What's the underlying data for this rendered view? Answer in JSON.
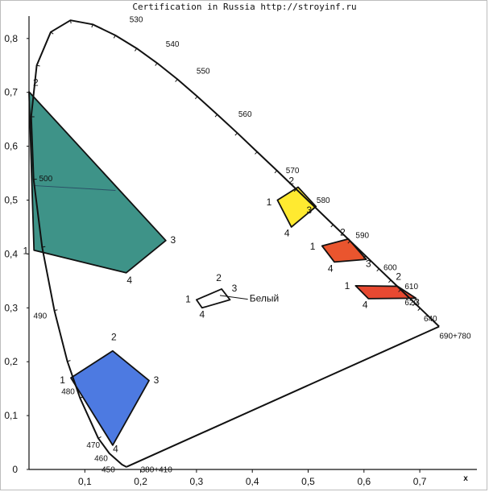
{
  "header": {
    "text": "Certification in Russia http://stroyinf.ru"
  },
  "chart_data": {
    "type": "scatter",
    "title": "",
    "xlabel": "x",
    "ylabel": "",
    "xlim": [
      0,
      0.8
    ],
    "ylim": [
      0,
      0.85
    ],
    "grid": false,
    "x_ticks": [
      {
        "v": 0.1,
        "label": "0,1"
      },
      {
        "v": 0.2,
        "label": "0,2"
      },
      {
        "v": 0.3,
        "label": "0,3"
      },
      {
        "v": 0.4,
        "label": "0,4"
      },
      {
        "v": 0.5,
        "label": "0,5"
      },
      {
        "v": 0.6,
        "label": "0,6"
      },
      {
        "v": 0.7,
        "label": "0,7"
      }
    ],
    "y_ticks": [
      {
        "v": 0.0,
        "label": "0"
      },
      {
        "v": 0.1,
        "label": "0,1"
      },
      {
        "v": 0.2,
        "label": "0,2"
      },
      {
        "v": 0.3,
        "label": "0,3"
      },
      {
        "v": 0.4,
        "label": "0,4"
      },
      {
        "v": 0.5,
        "label": "0,5"
      },
      {
        "v": 0.6,
        "label": "0,6"
      },
      {
        "v": 0.7,
        "label": "0,7"
      },
      {
        "v": 0.8,
        "label": "0,8"
      }
    ],
    "locus": [
      [
        0.175,
        0.005
      ],
      [
        0.1741,
        0.005
      ],
      [
        0.1666,
        0.0089
      ],
      [
        0.144,
        0.0297
      ],
      [
        0.1241,
        0.0578
      ],
      [
        0.0913,
        0.1327
      ],
      [
        0.0687,
        0.2007
      ],
      [
        0.0454,
        0.295
      ],
      [
        0.0235,
        0.4127
      ],
      [
        0.0082,
        0.5384
      ],
      [
        0.0039,
        0.6548
      ],
      [
        0.0139,
        0.7502
      ],
      [
        0.0389,
        0.812
      ],
      [
        0.0743,
        0.8338
      ],
      [
        0.1142,
        0.8262
      ],
      [
        0.1547,
        0.8059
      ],
      [
        0.1929,
        0.7816
      ],
      [
        0.2296,
        0.7543
      ],
      [
        0.2658,
        0.7243
      ],
      [
        0.3016,
        0.6923
      ],
      [
        0.3373,
        0.6589
      ],
      [
        0.3731,
        0.6245
      ],
      [
        0.4087,
        0.5896
      ],
      [
        0.4441,
        0.5547
      ],
      [
        0.4788,
        0.5202
      ],
      [
        0.5125,
        0.4866
      ],
      [
        0.5448,
        0.4544
      ],
      [
        0.5752,
        0.4242
      ],
      [
        0.6029,
        0.3965
      ],
      [
        0.627,
        0.3725
      ],
      [
        0.6482,
        0.3514
      ],
      [
        0.6658,
        0.334
      ],
      [
        0.6801,
        0.3197
      ],
      [
        0.6915,
        0.3083
      ],
      [
        0.7006,
        0.2993
      ],
      [
        0.714,
        0.2859
      ],
      [
        0.7347,
        0.2653
      ]
    ],
    "locus_closing_line": [
      [
        0.7347,
        0.2653
      ],
      [
        0.175,
        0.005
      ]
    ],
    "wavelength_labels": [
      {
        "label": "530",
        "x": 0.18,
        "y": 0.83
      },
      {
        "label": "540",
        "x": 0.245,
        "y": 0.785
      },
      {
        "label": "550",
        "x": 0.3,
        "y": 0.735
      },
      {
        "label": "560",
        "x": 0.375,
        "y": 0.655
      },
      {
        "label": "570",
        "x": 0.46,
        "y": 0.55
      },
      {
        "label": "580",
        "x": 0.515,
        "y": 0.495
      },
      {
        "label": "590",
        "x": 0.585,
        "y": 0.43
      },
      {
        "label": "600",
        "x": 0.635,
        "y": 0.37
      },
      {
        "label": "610",
        "x": 0.673,
        "y": 0.335
      },
      {
        "label": "620",
        "x": 0.673,
        "y": 0.305
      },
      {
        "label": "640",
        "x": 0.707,
        "y": 0.275
      },
      {
        "label": "690+780",
        "x": 0.735,
        "y": 0.243
      },
      {
        "label": "500",
        "x": 0.018,
        "y": 0.535
      },
      {
        "label": "490",
        "x": 0.008,
        "y": 0.28
      },
      {
        "label": "480",
        "x": 0.058,
        "y": 0.14
      },
      {
        "label": "470",
        "x": 0.103,
        "y": 0.04
      },
      {
        "label": "460",
        "x": 0.117,
        "y": 0.016
      },
      {
        "label": "450",
        "x": 0.13,
        "y": -0.005
      },
      {
        "label": "380+410",
        "x": 0.2,
        "y": -0.005
      }
    ],
    "series": [
      {
        "name": "",
        "fill": "#2e8a7e",
        "points": [
          [
            0.009,
            0.407
          ],
          [
            0.0,
            0.701
          ],
          [
            0.245,
            0.425
          ],
          [
            0.174,
            0.365
          ]
        ],
        "vertex_labels": [
          "1",
          "2",
          "3",
          "4"
        ],
        "label_positions": [
          [
            -0.006,
            0.4
          ],
          [
            0.012,
            0.712
          ],
          [
            0.258,
            0.42
          ],
          [
            0.18,
            0.345
          ]
        ]
      },
      {
        "name": "",
        "fill": "#3e6fde",
        "points": [
          [
            0.075,
            0.17
          ],
          [
            0.15,
            0.22
          ],
          [
            0.215,
            0.165
          ],
          [
            0.15,
            0.045
          ]
        ],
        "vertex_labels": [
          "1",
          "2",
          "3",
          "4"
        ],
        "label_positions": [
          [
            0.06,
            0.16
          ],
          [
            0.152,
            0.24
          ],
          [
            0.228,
            0.16
          ],
          [
            0.155,
            0.032
          ]
        ]
      },
      {
        "name": "",
        "fill": "#ffe81e",
        "points": [
          [
            0.445,
            0.5
          ],
          [
            0.482,
            0.524
          ],
          [
            0.514,
            0.488
          ],
          [
            0.47,
            0.45
          ]
        ],
        "vertex_labels": [
          "1",
          "2",
          "3",
          "4"
        ],
        "label_positions": [
          [
            0.43,
            0.49
          ],
          [
            0.47,
            0.53
          ],
          [
            0.502,
            0.475
          ],
          [
            0.462,
            0.433
          ]
        ]
      },
      {
        "name": "",
        "fill": "#e8461c",
        "points": [
          [
            0.525,
            0.415
          ],
          [
            0.572,
            0.428
          ],
          [
            0.604,
            0.39
          ],
          [
            0.547,
            0.385
          ]
        ],
        "vertex_labels": [
          "1",
          "2",
          "3",
          "4"
        ],
        "label_positions": [
          [
            0.508,
            0.408
          ],
          [
            0.562,
            0.434
          ],
          [
            0.608,
            0.376
          ],
          [
            0.54,
            0.367
          ]
        ]
      },
      {
        "name": "",
        "fill": "#e5391f",
        "points": [
          [
            0.585,
            0.341
          ],
          [
            0.66,
            0.34
          ],
          [
            0.693,
            0.318
          ],
          [
            0.608,
            0.317
          ]
        ],
        "vertex_labels": [
          "1",
          "2",
          "3",
          "4"
        ],
        "label_positions": [
          [
            0.57,
            0.335
          ],
          [
            0.662,
            0.352
          ],
          [
            0.695,
            0.304
          ],
          [
            0.602,
            0.3
          ]
        ]
      },
      {
        "name": "Белый",
        "fill": "none",
        "points": [
          [
            0.3,
            0.315
          ],
          [
            0.345,
            0.335
          ],
          [
            0.36,
            0.315
          ],
          [
            0.31,
            0.3
          ]
        ],
        "vertex_labels": [
          "1",
          "2",
          "3",
          "4"
        ],
        "label_positions": [
          [
            0.285,
            0.31
          ],
          [
            0.34,
            0.35
          ],
          [
            0.368,
            0.33
          ],
          [
            0.31,
            0.282
          ]
        ]
      }
    ],
    "annotations": [
      {
        "text": "Белый",
        "x": 0.395,
        "y": 0.312
      }
    ]
  }
}
